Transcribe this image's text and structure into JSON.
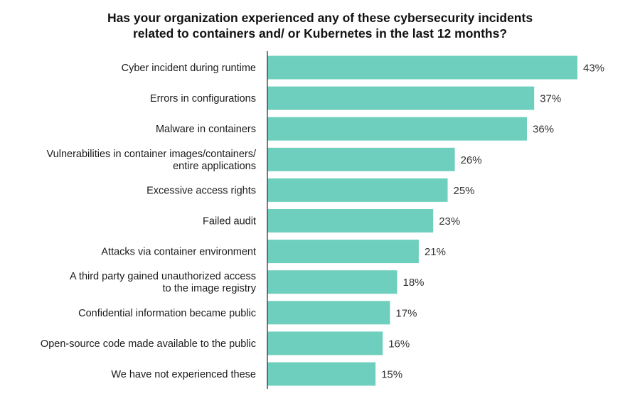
{
  "chart_data": {
    "type": "bar",
    "orientation": "horizontal",
    "title_lines": [
      "Has your organization experienced any of these cybersecurity incidents",
      "related to containers and/ or Kubernetes in the last 12 months?"
    ],
    "categories": [
      [
        "Cyber incident during runtime"
      ],
      [
        "Errors in configurations"
      ],
      [
        "Malware in containers"
      ],
      [
        "Vulnerabilities in container images/containers/",
        "entire applications"
      ],
      [
        "Excessive access rights"
      ],
      [
        "Failed audit"
      ],
      [
        "Attacks via container environment"
      ],
      [
        "A third party gained unauthorized access",
        "to the image registry"
      ],
      [
        "Confidential information became public"
      ],
      [
        "Open-source code made available to the public"
      ],
      [
        "We have not experienced these"
      ]
    ],
    "values": [
      43,
      37,
      36,
      26,
      25,
      23,
      21,
      18,
      17,
      16,
      15
    ],
    "value_labels": [
      "43%",
      "37%",
      "36%",
      "26%",
      "25%",
      "23%",
      "21%",
      "18%",
      "17%",
      "16%",
      "15%"
    ],
    "unit": "%",
    "xlim": [
      0,
      43
    ],
    "grid": false,
    "legend": "none",
    "bar_color": "#6fcfbe",
    "axis_color": "#333333"
  }
}
